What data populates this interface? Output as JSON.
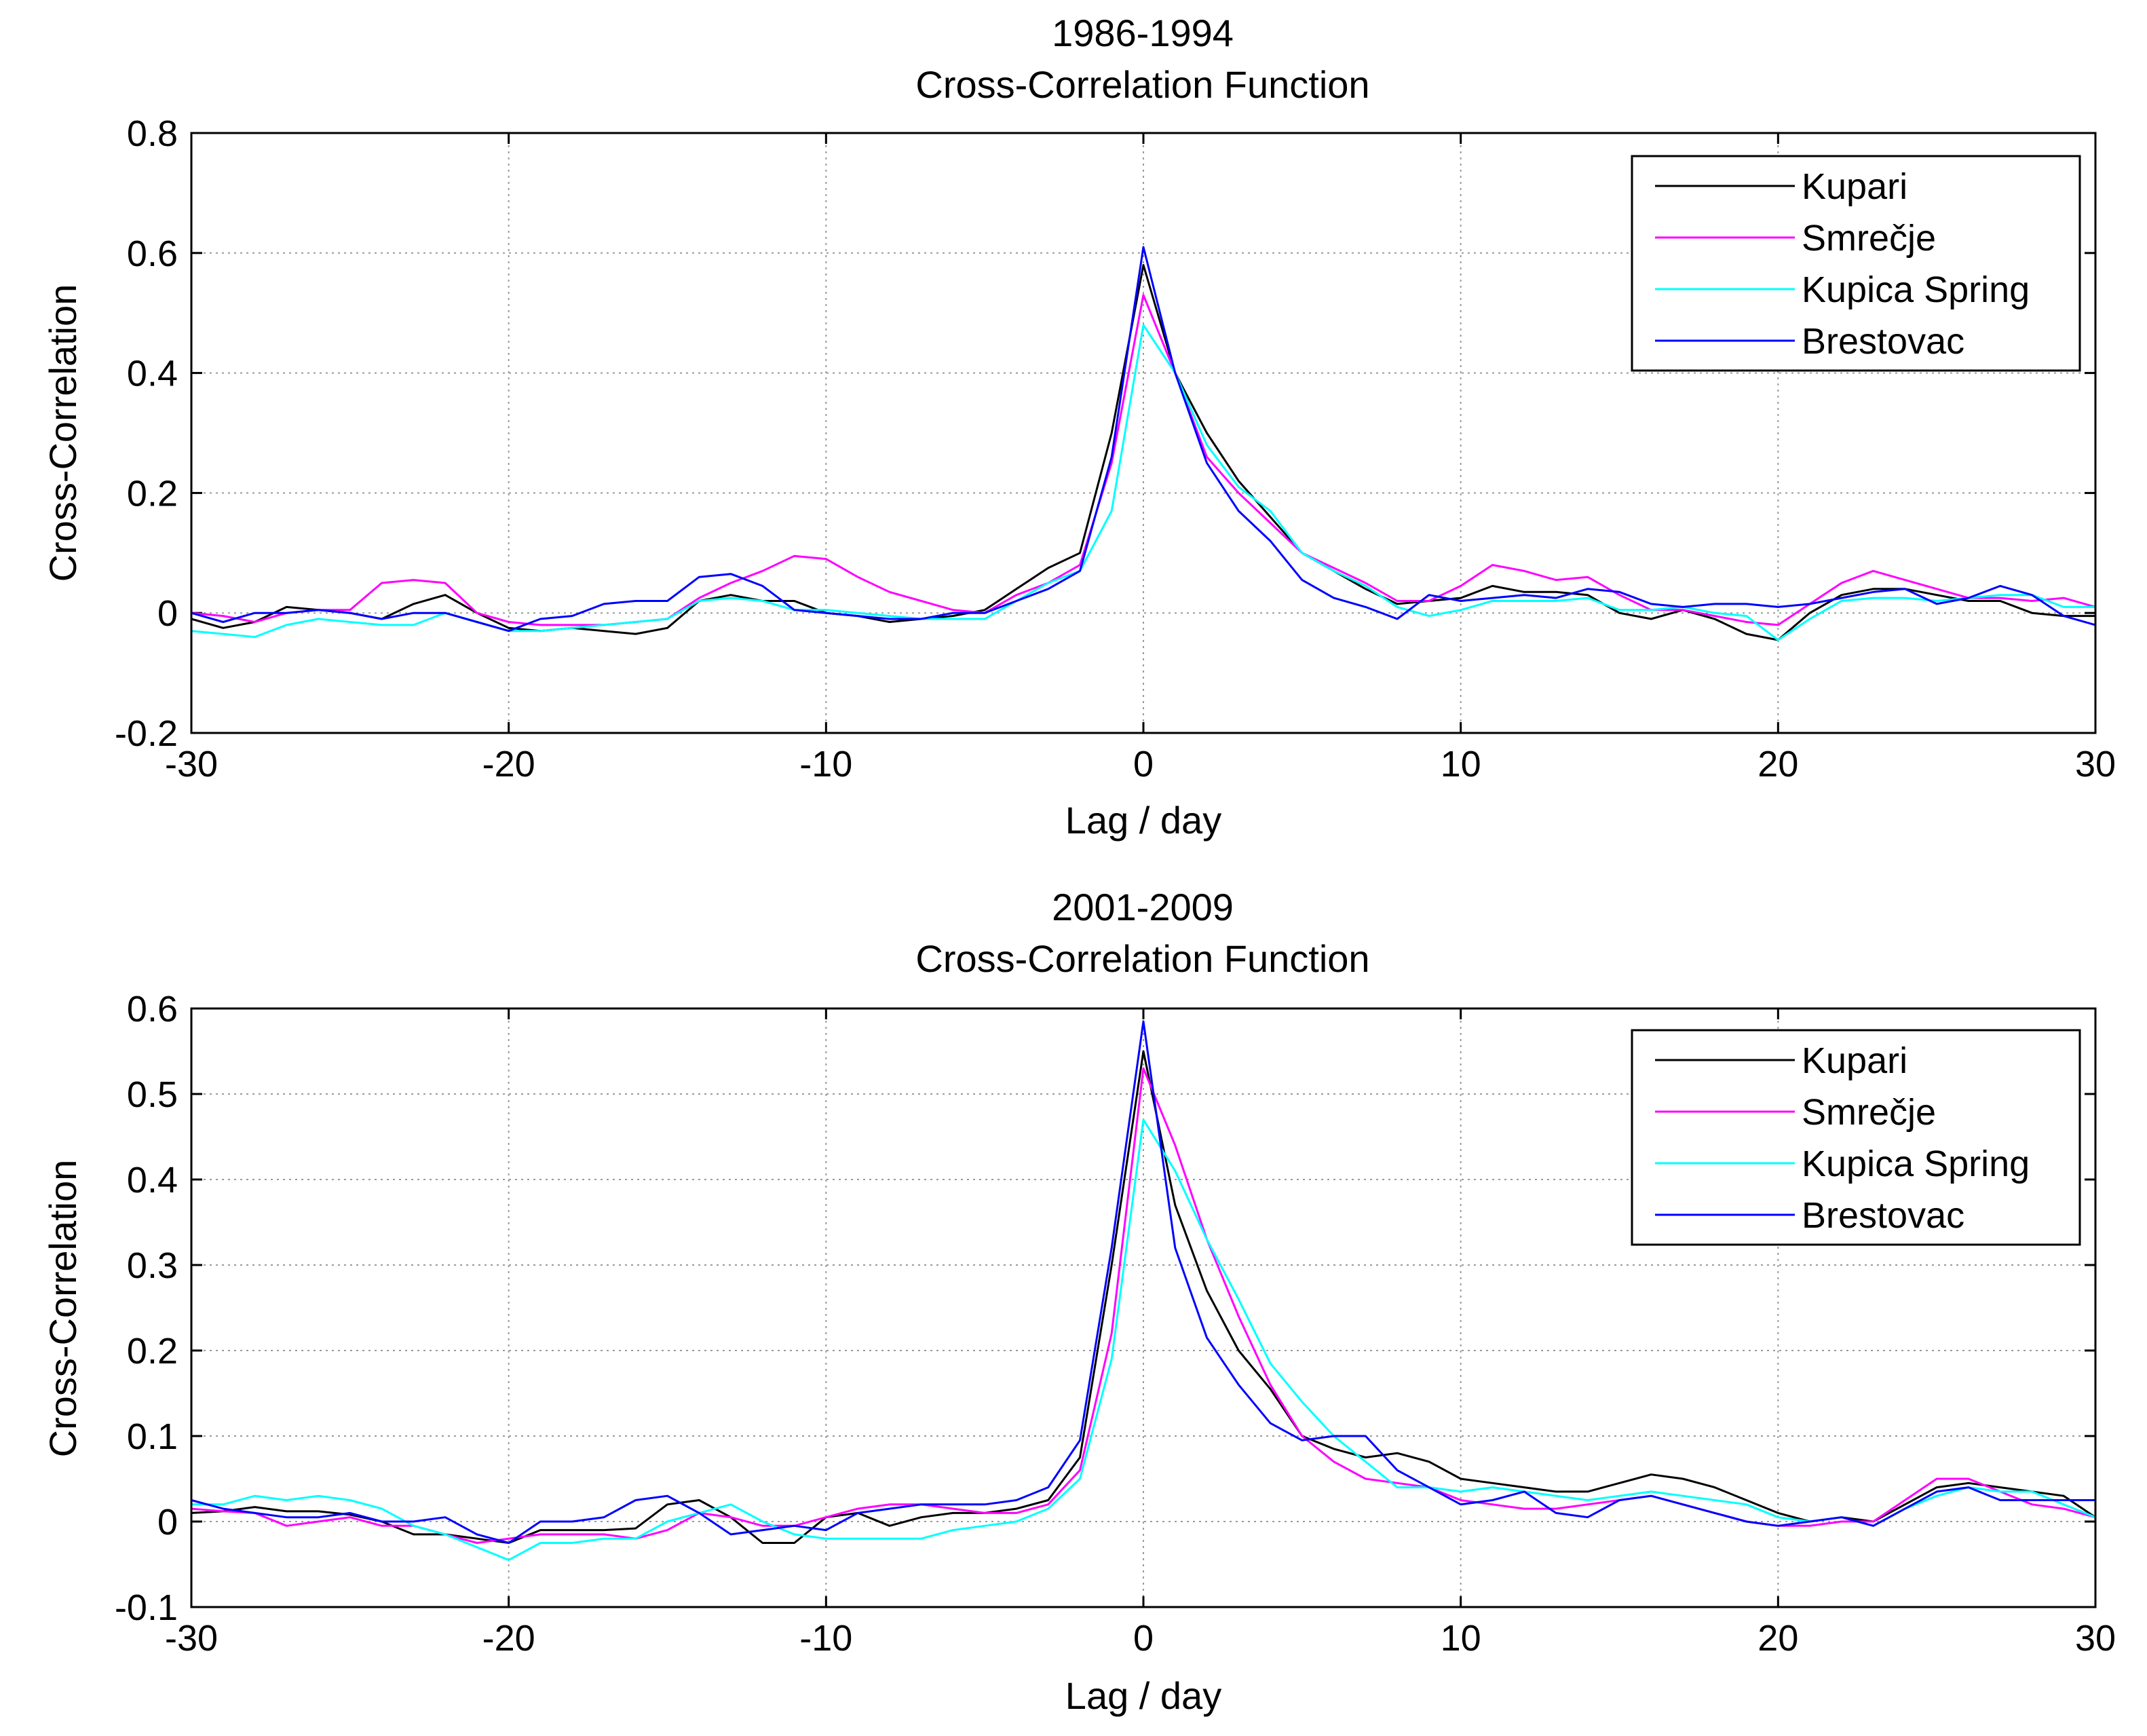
{
  "chart_data": [
    {
      "type": "line",
      "title": "1986-1994",
      "subtitle": "Cross-Correlation Function",
      "xlabel": "Lag / day",
      "ylabel": "Cross-Correlation",
      "xlim": [
        -30,
        30
      ],
      "ylim": [
        -0.2,
        0.8
      ],
      "xticks": [
        -30,
        -20,
        -10,
        0,
        10,
        20,
        30
      ],
      "yticks": [
        -0.2,
        0,
        0.2,
        0.4,
        0.6,
        0.8
      ],
      "ytick_labels": [
        "-0.2",
        "0",
        "0.2",
        "0.4",
        "0.6",
        "0.8"
      ],
      "grid": true,
      "legend_position": "top-right",
      "series": [
        {
          "name": "Kupari",
          "color": "#000000",
          "x": [
            -30,
            -29,
            -28,
            -27,
            -26,
            -25,
            -24,
            -23,
            -22,
            -21,
            -20,
            -19,
            -18,
            -17,
            -16,
            -15,
            -14,
            -13,
            -12,
            -11,
            -10,
            -9,
            -8,
            -7,
            -6,
            -5,
            -4,
            -3,
            -2,
            -1,
            0,
            1,
            2,
            3,
            4,
            5,
            6,
            7,
            8,
            9,
            10,
            11,
            12,
            13,
            14,
            15,
            16,
            17,
            18,
            19,
            20,
            21,
            22,
            23,
            24,
            25,
            26,
            27,
            28,
            29,
            30
          ],
          "values": [
            -0.01,
            -0.025,
            -0.015,
            0.01,
            0.005,
            0,
            -0.01,
            0.015,
            0.03,
            0,
            -0.025,
            -0.03,
            -0.025,
            -0.03,
            -0.035,
            -0.025,
            0.02,
            0.03,
            0.02,
            0.02,
            0,
            -0.005,
            -0.015,
            -0.01,
            -0.005,
            0.005,
            0.04,
            0.075,
            0.1,
            0.3,
            0.58,
            0.4,
            0.3,
            0.22,
            0.16,
            0.1,
            0.07,
            0.04,
            0.015,
            0.02,
            0.025,
            0.045,
            0.035,
            0.035,
            0.03,
            0,
            -0.01,
            0.005,
            -0.01,
            -0.035,
            -0.045,
            0,
            0.03,
            0.04,
            0.04,
            0.03,
            0.02,
            0.02,
            0,
            -0.005,
            -0.005
          ]
        },
        {
          "name": "Smrečje",
          "color": "#ff00ff",
          "x": [
            -30,
            -29,
            -28,
            -27,
            -26,
            -25,
            -24,
            -23,
            -22,
            -21,
            -20,
            -19,
            -18,
            -17,
            -16,
            -15,
            -14,
            -13,
            -12,
            -11,
            -10,
            -9,
            -8,
            -7,
            -6,
            -5,
            -4,
            -3,
            -2,
            -1,
            0,
            1,
            2,
            3,
            4,
            5,
            6,
            7,
            8,
            9,
            10,
            11,
            12,
            13,
            14,
            15,
            16,
            17,
            18,
            19,
            20,
            21,
            22,
            23,
            24,
            25,
            26,
            27,
            28,
            29,
            30
          ],
          "values": [
            0,
            -0.005,
            -0.015,
            0,
            0.005,
            0.005,
            0.05,
            0.055,
            0.05,
            0,
            -0.015,
            -0.02,
            -0.02,
            -0.02,
            -0.015,
            -0.01,
            0.025,
            0.05,
            0.07,
            0.095,
            0.09,
            0.06,
            0.035,
            0.02,
            0.005,
            0,
            0.03,
            0.05,
            0.08,
            0.25,
            0.53,
            0.4,
            0.26,
            0.2,
            0.15,
            0.1,
            0.075,
            0.05,
            0.02,
            0.02,
            0.045,
            0.08,
            0.07,
            0.055,
            0.06,
            0.03,
            0.005,
            0.005,
            -0.005,
            -0.015,
            -0.02,
            0.015,
            0.05,
            0.07,
            0.055,
            0.04,
            0.025,
            0.025,
            0.02,
            0.025,
            0.01
          ]
        },
        {
          "name": "Kupica Spring",
          "color": "#00ffff",
          "x": [
            -30,
            -29,
            -28,
            -27,
            -26,
            -25,
            -24,
            -23,
            -22,
            -21,
            -20,
            -19,
            -18,
            -17,
            -16,
            -15,
            -14,
            -13,
            -12,
            -11,
            -10,
            -9,
            -8,
            -7,
            -6,
            -5,
            -4,
            -3,
            -2,
            -1,
            0,
            1,
            2,
            3,
            4,
            5,
            6,
            7,
            8,
            9,
            10,
            11,
            12,
            13,
            14,
            15,
            16,
            17,
            18,
            19,
            20,
            21,
            22,
            23,
            24,
            25,
            26,
            27,
            28,
            29,
            30
          ],
          "values": [
            -0.03,
            -0.035,
            -0.04,
            -0.02,
            -0.01,
            -0.015,
            -0.02,
            -0.02,
            0,
            -0.015,
            -0.03,
            -0.03,
            -0.025,
            -0.02,
            -0.015,
            -0.01,
            0.02,
            0.025,
            0.02,
            0.005,
            0.005,
            0,
            -0.005,
            -0.01,
            -0.01,
            -0.01,
            0.02,
            0.05,
            0.07,
            0.17,
            0.48,
            0.4,
            0.28,
            0.21,
            0.17,
            0.1,
            0.07,
            0.045,
            0.01,
            -0.005,
            0.005,
            0.02,
            0.02,
            0.02,
            0.025,
            0.005,
            0.005,
            0.01,
            0,
            -0.005,
            -0.045,
            -0.01,
            0.02,
            0.025,
            0.025,
            0.02,
            0.025,
            0.03,
            0.03,
            0.01,
            0.01
          ]
        },
        {
          "name": "Brestovac",
          "color": "#0000ff",
          "x": [
            -30,
            -29,
            -28,
            -27,
            -26,
            -25,
            -24,
            -23,
            -22,
            -21,
            -20,
            -19,
            -18,
            -17,
            -16,
            -15,
            -14,
            -13,
            -12,
            -11,
            -10,
            -9,
            -8,
            -7,
            -6,
            -5,
            -4,
            -3,
            -2,
            -1,
            0,
            1,
            2,
            3,
            4,
            5,
            6,
            7,
            8,
            9,
            10,
            11,
            12,
            13,
            14,
            15,
            16,
            17,
            18,
            19,
            20,
            21,
            22,
            23,
            24,
            25,
            26,
            27,
            28,
            29,
            30
          ],
          "values": [
            0,
            -0.015,
            0,
            0,
            0.005,
            0,
            -0.01,
            0,
            0,
            -0.015,
            -0.03,
            -0.01,
            -0.005,
            0.015,
            0.02,
            0.02,
            0.06,
            0.065,
            0.045,
            0.005,
            0,
            -0.005,
            -0.01,
            -0.01,
            0,
            0,
            0.02,
            0.04,
            0.07,
            0.26,
            0.61,
            0.4,
            0.25,
            0.17,
            0.12,
            0.055,
            0.025,
            0.01,
            -0.01,
            0.03,
            0.02,
            0.025,
            0.03,
            0.025,
            0.04,
            0.035,
            0.015,
            0.01,
            0.015,
            0.015,
            0.01,
            0.015,
            0.025,
            0.035,
            0.04,
            0.015,
            0.025,
            0.045,
            0.03,
            -0.005,
            -0.02
          ]
        }
      ]
    },
    {
      "type": "line",
      "title": "2001-2009",
      "subtitle": "Cross-Correlation Function",
      "xlabel": "Lag / day",
      "ylabel": "Cross-Correlation",
      "xlim": [
        -30,
        30
      ],
      "ylim": [
        -0.1,
        0.6
      ],
      "xticks": [
        -30,
        -20,
        -10,
        0,
        10,
        20,
        30
      ],
      "yticks": [
        -0.1,
        0,
        0.1,
        0.2,
        0.3,
        0.4,
        0.5,
        0.6
      ],
      "ytick_labels": [
        "-0.1",
        "0",
        "0.1",
        "0.2",
        "0.3",
        "0.4",
        "0.5",
        "0.6"
      ],
      "grid": true,
      "legend_position": "top-right",
      "series": [
        {
          "name": "Kupari",
          "color": "#000000",
          "x": [
            -30,
            -29,
            -28,
            -27,
            -26,
            -25,
            -24,
            -23,
            -22,
            -21,
            -20,
            -19,
            -18,
            -17,
            -16,
            -15,
            -14,
            -13,
            -12,
            -11,
            -10,
            -9,
            -8,
            -7,
            -6,
            -5,
            -4,
            -3,
            -2,
            -1,
            0,
            1,
            2,
            3,
            4,
            5,
            6,
            7,
            8,
            9,
            10,
            11,
            12,
            13,
            14,
            15,
            16,
            17,
            18,
            19,
            20,
            21,
            22,
            23,
            24,
            25,
            26,
            27,
            28,
            29,
            30
          ],
          "values": [
            0.01,
            0.012,
            0.017,
            0.012,
            0.012,
            0.008,
            0,
            -0.015,
            -0.015,
            -0.02,
            -0.025,
            -0.01,
            -0.01,
            -0.01,
            -0.008,
            0.02,
            0.025,
            0.005,
            -0.025,
            -0.025,
            0.005,
            0.01,
            -0.005,
            0.005,
            0.01,
            0.01,
            0.015,
            0.025,
            0.075,
            0.3,
            0.55,
            0.37,
            0.27,
            0.2,
            0.155,
            0.1,
            0.085,
            0.075,
            0.08,
            0.07,
            0.05,
            0.045,
            0.04,
            0.035,
            0.035,
            0.045,
            0.055,
            0.05,
            0.04,
            0.025,
            0.01,
            0,
            0.005,
            0,
            0.02,
            0.04,
            0.045,
            0.04,
            0.035,
            0.03,
            0.005
          ]
        },
        {
          "name": "Smrečje",
          "color": "#ff00ff",
          "x": [
            -30,
            -29,
            -28,
            -27,
            -26,
            -25,
            -24,
            -23,
            -22,
            -21,
            -20,
            -19,
            -18,
            -17,
            -16,
            -15,
            -14,
            -13,
            -12,
            -11,
            -10,
            -9,
            -8,
            -7,
            -6,
            -5,
            -4,
            -3,
            -2,
            -1,
            0,
            1,
            2,
            3,
            4,
            5,
            6,
            7,
            8,
            9,
            10,
            11,
            12,
            13,
            14,
            15,
            16,
            17,
            18,
            19,
            20,
            21,
            22,
            23,
            24,
            25,
            26,
            27,
            28,
            29,
            30
          ],
          "values": [
            0.015,
            0.012,
            0.01,
            -0.005,
            0,
            0.005,
            -0.005,
            -0.005,
            -0.015,
            -0.025,
            -0.02,
            -0.015,
            -0.015,
            -0.015,
            -0.02,
            -0.01,
            0.01,
            0.005,
            -0.005,
            -0.005,
            0.005,
            0.015,
            0.02,
            0.02,
            0.015,
            0.01,
            0.01,
            0.02,
            0.06,
            0.22,
            0.53,
            0.44,
            0.33,
            0.24,
            0.16,
            0.1,
            0.07,
            0.05,
            0.045,
            0.04,
            0.025,
            0.02,
            0.015,
            0.015,
            0.02,
            0.025,
            0.03,
            0.02,
            0.01,
            0,
            -0.005,
            -0.005,
            0,
            0,
            0.025,
            0.05,
            0.05,
            0.035,
            0.02,
            0.015,
            0.005
          ]
        },
        {
          "name": "Kupica Spring",
          "color": "#00ffff",
          "x": [
            -30,
            -29,
            -28,
            -27,
            -26,
            -25,
            -24,
            -23,
            -22,
            -21,
            -20,
            -19,
            -18,
            -17,
            -16,
            -15,
            -14,
            -13,
            -12,
            -11,
            -10,
            -9,
            -8,
            -7,
            -6,
            -5,
            -4,
            -3,
            -2,
            -1,
            0,
            1,
            2,
            3,
            4,
            5,
            6,
            7,
            8,
            9,
            10,
            11,
            12,
            13,
            14,
            15,
            16,
            17,
            18,
            19,
            20,
            21,
            22,
            23,
            24,
            25,
            26,
            27,
            28,
            29,
            30
          ],
          "values": [
            0.02,
            0.02,
            0.03,
            0.025,
            0.03,
            0.025,
            0.015,
            -0.005,
            -0.015,
            -0.03,
            -0.045,
            -0.025,
            -0.025,
            -0.02,
            -0.02,
            0,
            0.01,
            0.02,
            0,
            -0.015,
            -0.02,
            -0.02,
            -0.02,
            -0.02,
            -0.01,
            -0.005,
            0,
            0.015,
            0.05,
            0.19,
            0.47,
            0.41,
            0.33,
            0.26,
            0.185,
            0.14,
            0.1,
            0.07,
            0.04,
            0.04,
            0.035,
            0.04,
            0.035,
            0.03,
            0.025,
            0.03,
            0.035,
            0.03,
            0.025,
            0.02,
            0.005,
            0,
            0.005,
            -0.005,
            0.015,
            0.03,
            0.04,
            0.035,
            0.035,
            0.02,
            0.005
          ]
        },
        {
          "name": "Brestovac",
          "color": "#0000ff",
          "x": [
            -30,
            -29,
            -28,
            -27,
            -26,
            -25,
            -24,
            -23,
            -22,
            -21,
            -20,
            -19,
            -18,
            -17,
            -16,
            -15,
            -14,
            -13,
            -12,
            -11,
            -10,
            -9,
            -8,
            -7,
            -6,
            -5,
            -4,
            -3,
            -2,
            -1,
            0,
            1,
            2,
            3,
            4,
            5,
            6,
            7,
            8,
            9,
            10,
            11,
            12,
            13,
            14,
            15,
            16,
            17,
            18,
            19,
            20,
            21,
            22,
            23,
            24,
            25,
            26,
            27,
            28,
            29,
            30
          ],
          "values": [
            0.025,
            0.015,
            0.01,
            0.005,
            0.005,
            0.01,
            0,
            0,
            0.005,
            -0.015,
            -0.025,
            0,
            0,
            0.005,
            0.025,
            0.03,
            0.01,
            -0.015,
            -0.01,
            -0.005,
            -0.01,
            0.01,
            0.015,
            0.02,
            0.02,
            0.02,
            0.025,
            0.04,
            0.095,
            0.32,
            0.585,
            0.32,
            0.215,
            0.16,
            0.115,
            0.095,
            0.1,
            0.1,
            0.06,
            0.04,
            0.02,
            0.025,
            0.035,
            0.01,
            0.005,
            0.025,
            0.03,
            0.02,
            0.01,
            0,
            -0.005,
            0,
            0.005,
            -0.005,
            0.015,
            0.035,
            0.04,
            0.025,
            0.025,
            0.025,
            0.025
          ]
        }
      ]
    }
  ]
}
